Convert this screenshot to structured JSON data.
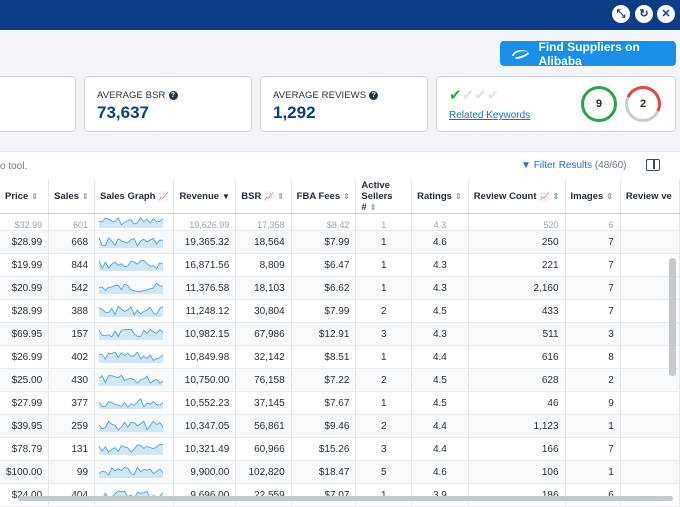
{
  "window_controls": [
    "minimize-icon",
    "refresh-icon",
    "close-icon"
  ],
  "alibaba_button": {
    "label": "Find Suppliers on Alibaba"
  },
  "cards": {
    "bsr": {
      "label": "AVERAGE BSR",
      "value": "73,637"
    },
    "reviews": {
      "label": "AVERAGE REVIEWS",
      "value": "1,292"
    },
    "keywords": {
      "link": "Related Keywords",
      "green_count": "9",
      "red_count": "2"
    }
  },
  "toolbar": {
    "tool_text": "o tool.",
    "filter_label": "Filter Results",
    "filter_count": "(48/60)"
  },
  "columns": [
    "Price",
    "Sales",
    "Sales Graph",
    "Revenue",
    "BSR",
    "FBA Fees",
    "Active Sellers #",
    "Ratings",
    "Review Count",
    "Images",
    "Review ve"
  ],
  "partial_row": [
    "$32.99",
    "601",
    "",
    "19,626.99",
    "17,358",
    "$8.42",
    "1",
    "4.3",
    "520",
    "6"
  ],
  "rows": [
    [
      "$28.99",
      "668",
      "",
      "19,365.32",
      "18,564",
      "$7.99",
      "1",
      "4.6",
      "250",
      "7"
    ],
    [
      "$19.99",
      "844",
      "",
      "16,871.56",
      "8,809",
      "$6.47",
      "1",
      "4.3",
      "221",
      "7"
    ],
    [
      "$20.99",
      "542",
      "",
      "11,376.58",
      "18,103",
      "$6.62",
      "1",
      "4.3",
      "2,160",
      "7"
    ],
    [
      "$28.99",
      "388",
      "",
      "11,248.12",
      "30,804",
      "$7.99",
      "2",
      "4.5",
      "433",
      "7"
    ],
    [
      "$69.95",
      "157",
      "",
      "10,982.15",
      "67,986",
      "$12.91",
      "3",
      "4.3",
      "511",
      "3"
    ],
    [
      "$26.99",
      "402",
      "",
      "10,849.98",
      "32,142",
      "$8.51",
      "1",
      "4.4",
      "616",
      "8"
    ],
    [
      "$25.00",
      "430",
      "",
      "10,750.00",
      "76,158",
      "$7.22",
      "2",
      "4.5",
      "628",
      "2"
    ],
    [
      "$27.99",
      "377",
      "",
      "10,552.23",
      "37,145",
      "$7.67",
      "1",
      "4.5",
      "46",
      "9"
    ],
    [
      "$39.95",
      "259",
      "",
      "10,347.05",
      "56,861",
      "$9.46",
      "2",
      "4.4",
      "1,123",
      "1"
    ],
    [
      "$78.79",
      "131",
      "",
      "10,321.49",
      "60,966",
      "$15.26",
      "3",
      "4.4",
      "166",
      "7"
    ],
    [
      "$100.00",
      "99",
      "",
      "9,900.00",
      "102,820",
      "$18.47",
      "5",
      "4.6",
      "106",
      "1"
    ],
    [
      "$24.00",
      "404",
      "",
      "9,696.00",
      "22,559",
      "$7.07",
      "1",
      "3.9",
      "186",
      "6"
    ]
  ],
  "colors": {
    "brand": "#0c3d86",
    "button": "#1a8fe8",
    "spark_fill": "#cfe6fb",
    "spark_line": "#3d9bea"
  }
}
